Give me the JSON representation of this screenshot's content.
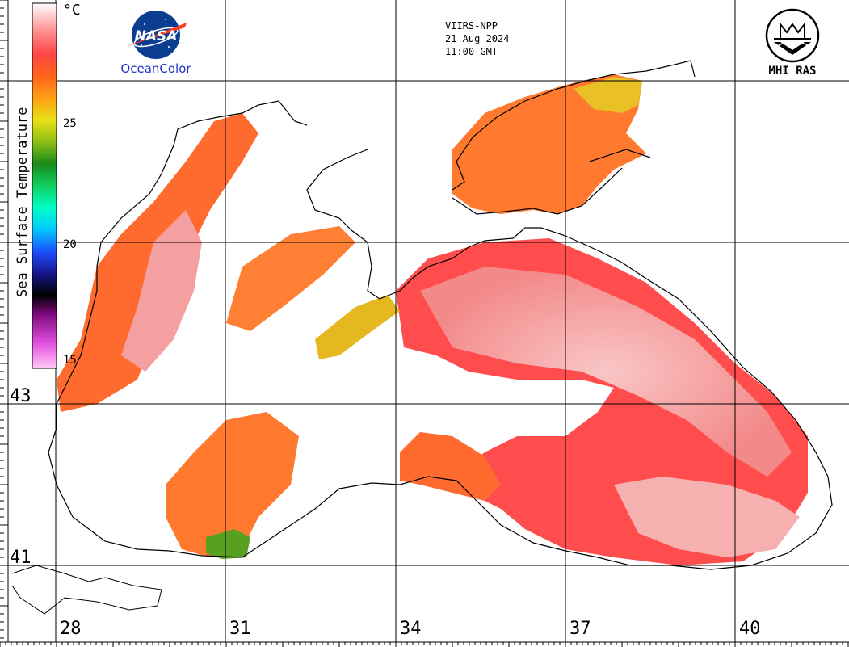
{
  "satellite": {
    "sensor": "VIIRS-NPP",
    "date": "21 Aug 2024",
    "time": "11:00 GMT"
  },
  "logos": {
    "nasa": {
      "mark": "NASA",
      "wordmark": "OceanColor",
      "icon": "nasa-meatball-icon"
    },
    "mhi": {
      "wordmark": "MHI RAS",
      "icon": "mhi-emblem-icon"
    }
  },
  "color_scale": {
    "title": "Sea Surface Temperature",
    "unit": "°C",
    "ticks": [
      25,
      20,
      15
    ],
    "min": 14.5,
    "max": 29.5,
    "colors": [
      "#ffc8f5",
      "#e24ee0",
      "#7a0a7a",
      "#000000",
      "#16168c",
      "#1e50ff",
      "#00c8ff",
      "#00ffc8",
      "#10d060",
      "#1a8a1a",
      "#8cbe14",
      "#e8e014",
      "#ffa014",
      "#ff6419",
      "#ff4646",
      "#ff8c8c",
      "#ffd2d2",
      "#ffffff"
    ]
  },
  "grid": {
    "latitudes": [
      43,
      41
    ],
    "longitudes": [
      28,
      31,
      34,
      37,
      40
    ]
  },
  "palette": {
    "coast": "#000000",
    "grid": "#000000",
    "orange": "#ff6a2e",
    "red": "#ff4d4d",
    "pink": "#f6a0a0",
    "yellow": "#e8c020",
    "green": "#5aa020"
  }
}
